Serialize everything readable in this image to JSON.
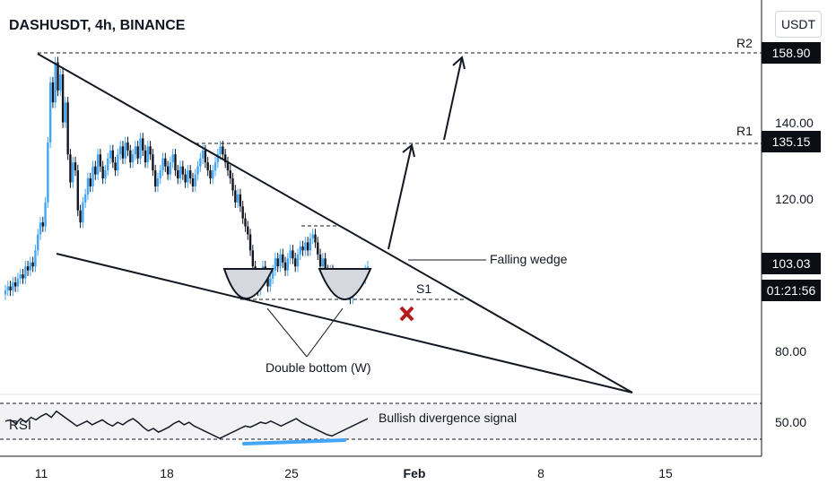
{
  "header": {
    "title": "DASHUSDT, 4h, BINANCE",
    "currency": "USDT"
  },
  "price_tags": {
    "r2": "158.90",
    "r1": "135.15",
    "last": "103.03",
    "countdown": "01:21:56"
  },
  "annotations": {
    "r2": "R2",
    "r1": "R1",
    "s1": "S1",
    "wedge": "Falling wedge",
    "double_bottom": "Double bottom (W)",
    "divergence": "Bullish divergence signal",
    "rsi": "RSI"
  },
  "colors": {
    "up": "#42a5f5",
    "down": "#131722",
    "divergence": "#42a5f5",
    "invalid": "#b71c1c"
  },
  "chart_data": {
    "type": "candlestick",
    "y_ticks": [
      "140.00",
      "120.00",
      "80.00"
    ],
    "x_ticks": [
      {
        "label": "11",
        "bold": false
      },
      {
        "label": "18",
        "bold": false
      },
      {
        "label": "25",
        "bold": false
      },
      {
        "label": "Feb",
        "bold": true
      },
      {
        "label": "8",
        "bold": false
      },
      {
        "label": "15",
        "bold": false
      }
    ],
    "series": [
      {
        "values": [
          98,
          99,
          98,
          100,
          99,
          101,
          102,
          101,
          104,
          103,
          105,
          104,
          108,
          112,
          115,
          114,
          120,
          135,
          150,
          145,
          155,
          148,
          152,
          140,
          145,
          132,
          125,
          130,
          128,
          118,
          115,
          120,
          122,
          126,
          124,
          129,
          127,
          132,
          129,
          126,
          128,
          131,
          133,
          130,
          128,
          132,
          134,
          131,
          135,
          133,
          130,
          132,
          134,
          131,
          136,
          133,
          130,
          134,
          132,
          128,
          124,
          126,
          128,
          131,
          129,
          127,
          130,
          132,
          128,
          126,
          129,
          127,
          125,
          128,
          126,
          124,
          127,
          129,
          131,
          133,
          130,
          128,
          126,
          128,
          130,
          132,
          134,
          132,
          130,
          128,
          126,
          123,
          120,
          122,
          119,
          116,
          114,
          112,
          108,
          104,
          100,
          98,
          101,
          104,
          102,
          99,
          101,
          103,
          106,
          104,
          107,
          105,
          103,
          106,
          108,
          106,
          104,
          107,
          109,
          108,
          110,
          108,
          111,
          112,
          110,
          107,
          104,
          106,
          103,
          101,
          103,
          100,
          98,
          101,
          99,
          97,
          100,
          98,
          96,
          99,
          101,
          100,
          102,
          101,
          103,
          104
        ]
      },
      {
        "name": "RSI",
        "values": [
          52,
          53,
          50,
          54,
          51,
          55,
          53,
          56,
          58,
          55,
          60,
          57,
          54,
          51,
          48,
          50,
          52,
          49,
          51,
          53,
          50,
          48,
          51,
          49,
          52,
          54,
          51,
          47,
          44,
          46,
          43,
          45,
          47,
          50,
          52,
          49,
          51,
          48,
          46,
          44,
          42,
          40,
          38,
          40,
          42,
          44,
          46,
          48,
          47,
          49,
          51,
          50,
          52,
          50,
          48,
          50,
          52,
          54,
          51,
          49,
          47,
          45,
          43,
          41,
          40,
          42,
          44,
          46,
          48,
          50,
          52,
          54
        ]
      }
    ],
    "ylim": [
      72,
      165
    ]
  }
}
